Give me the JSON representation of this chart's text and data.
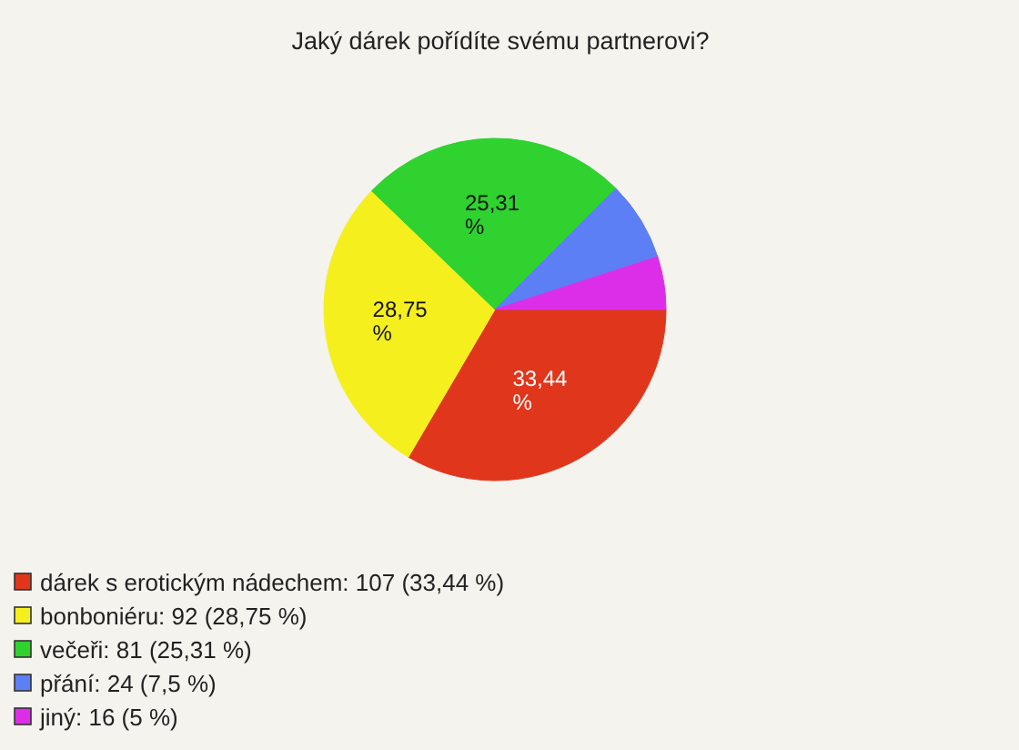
{
  "chart_data": {
    "type": "pie",
    "title": "Jaký dárek pořídíte svému partnerovi?",
    "categories": [
      "dárek s erotickým nádechem: 107 (33,44 %)",
      "bonboniéru: 92 (28,75 %)",
      "večeři: 81 (25,31 %)",
      "přání: 24 (7,5 %)",
      "jiný: 16 (5 %)"
    ],
    "values": [
      33.44,
      28.75,
      25.31,
      7.5,
      5
    ],
    "colors": [
      "#e0361c",
      "#f5ef1e",
      "#2fd22f",
      "#5c7ff5",
      "#dc2ee8"
    ],
    "value_labels": [
      "33,44 %",
      "28,75 %",
      "25,31 %",
      null,
      null
    ],
    "legend": "bottom"
  }
}
